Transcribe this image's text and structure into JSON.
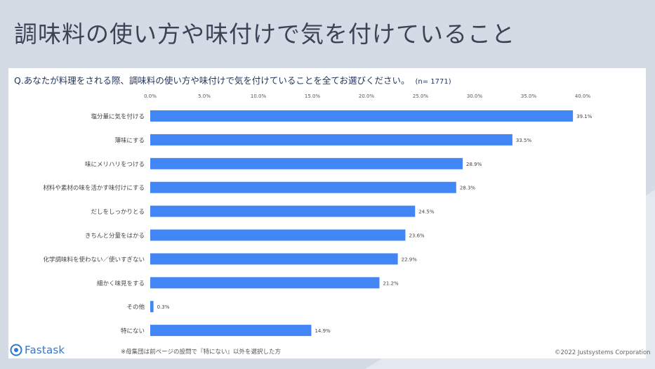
{
  "page": {
    "title": "調味料の使い方や味付けで気を付けていること",
    "question": "Q.あなたが料理をされる際、調味料の使い方や味付けで気を付けていることを全てお選びください。",
    "sample_size": "(n= 1771)",
    "footnote": "※母集団は前ページの設問で『特にない』以外を選択した方",
    "copyright": "©2022 Justsystems Corporation",
    "logo_text": "Fastask"
  },
  "colors": {
    "bar": "#4285f4",
    "background": "#d5dbe5",
    "title": "#3b4456"
  },
  "chart_data": {
    "type": "bar",
    "orientation": "horizontal",
    "categories": [
      "塩分量に気を付ける",
      "薄味にする",
      "味にメリハリをつける",
      "材料や素材の味を活かす味付けにする",
      "だしをしっかりとる",
      "きちんと分量をはかる",
      "化学調味料を使わない／使いすぎない",
      "細かく味見をする",
      "その他",
      "特にない"
    ],
    "values": [
      39.1,
      33.5,
      28.9,
      28.3,
      24.5,
      23.6,
      22.9,
      21.2,
      0.3,
      14.9
    ],
    "value_labels": [
      "39.1%",
      "33.5%",
      "28.9%",
      "28.3%",
      "24.5%",
      "23.6%",
      "22.9%",
      "21.2%",
      "0.3%",
      "14.9%"
    ],
    "x_ticks": [
      0,
      5,
      10,
      15,
      20,
      25,
      30,
      35,
      40
    ],
    "x_tick_labels": [
      "0.0%",
      "5.0%",
      "10.0%",
      "15.0%",
      "20.0%",
      "25.0%",
      "30.0%",
      "35.0%",
      "40.0%"
    ],
    "xlim": [
      0,
      40
    ],
    "grid": false,
    "legend": "none"
  }
}
